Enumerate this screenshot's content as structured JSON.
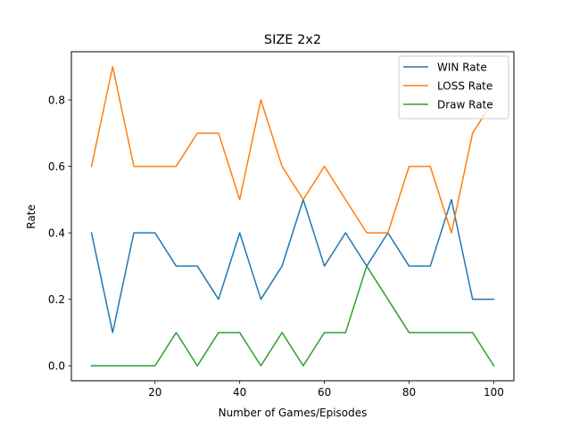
{
  "chart_data": {
    "type": "line",
    "title": "SIZE 2x2",
    "xlabel": "Number of Games/Episodes",
    "ylabel": "Rate",
    "x": [
      5,
      10,
      15,
      20,
      25,
      30,
      35,
      40,
      45,
      50,
      55,
      60,
      65,
      70,
      75,
      80,
      85,
      90,
      95,
      100
    ],
    "xlim": [
      0.25,
      104.75
    ],
    "ylim": [
      -0.045,
      0.945
    ],
    "xticks": [
      20,
      40,
      60,
      80,
      100
    ],
    "xtick_labels": [
      "20",
      "40",
      "60",
      "80",
      "100"
    ],
    "yticks": [
      0.0,
      0.2,
      0.4,
      0.6,
      0.8
    ],
    "ytick_labels": [
      "0.0",
      "0.2",
      "0.4",
      "0.6",
      "0.8"
    ],
    "grid": false,
    "legend_position": "top-right",
    "series": [
      {
        "name": "WIN Rate",
        "color": "#1f77b4",
        "values": [
          0.4,
          0.1,
          0.4,
          0.4,
          0.3,
          0.3,
          0.2,
          0.4,
          0.2,
          0.3,
          0.5,
          0.3,
          0.4,
          0.3,
          0.4,
          0.3,
          0.3,
          0.5,
          0.2,
          0.2
        ]
      },
      {
        "name": "LOSS Rate",
        "color": "#ff7f0e",
        "values": [
          0.6,
          0.9,
          0.6,
          0.6,
          0.6,
          0.7,
          0.7,
          0.5,
          0.8,
          0.6,
          0.5,
          0.6,
          0.5,
          0.4,
          0.4,
          0.6,
          0.6,
          0.4,
          0.7,
          0.8
        ]
      },
      {
        "name": "Draw Rate",
        "color": "#2ca02c",
        "values": [
          0.0,
          0.0,
          0.0,
          0.0,
          0.1,
          0.0,
          0.1,
          0.1,
          0.0,
          0.1,
          0.0,
          0.1,
          0.1,
          0.3,
          0.2,
          0.1,
          0.1,
          0.1,
          0.1,
          0.0
        ]
      }
    ]
  }
}
